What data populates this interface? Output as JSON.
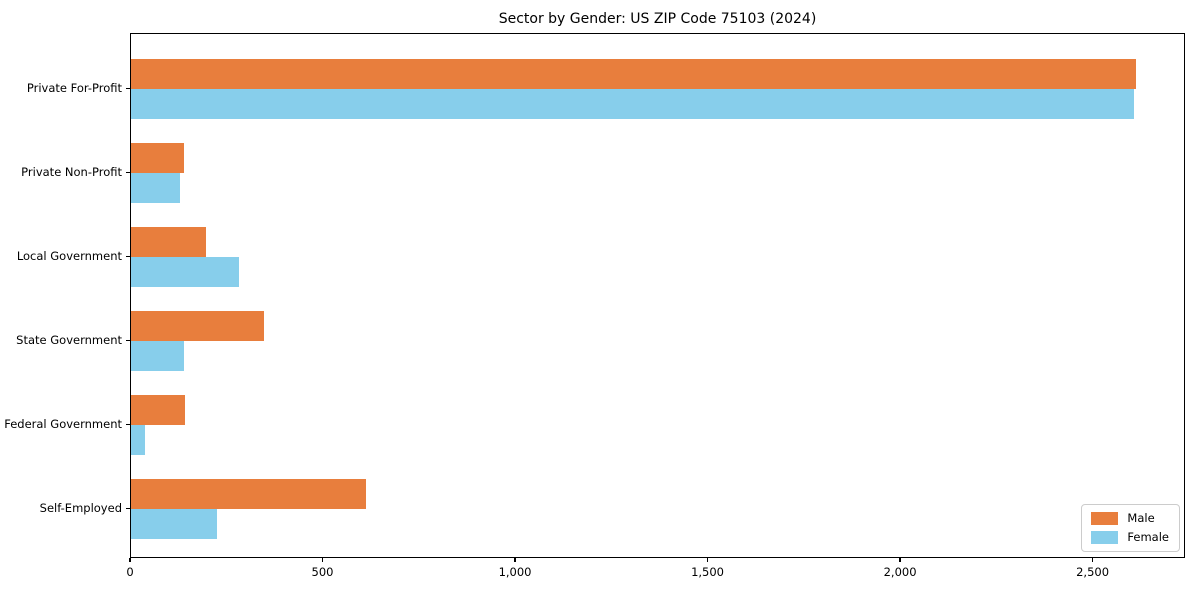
{
  "chart_data": {
    "type": "bar",
    "orientation": "horizontal",
    "title": "Sector by Gender: US ZIP Code 75103 (2024)",
    "categories": [
      "Private For-Profit",
      "Private Non-Profit",
      "Local Government",
      "State Government",
      "Federal Government",
      "Self-Employed"
    ],
    "series": [
      {
        "name": "Male",
        "color": "#e87e3d",
        "values": [
          2610,
          138,
          195,
          345,
          140,
          610
        ]
      },
      {
        "name": "Female",
        "color": "#87ceeb",
        "values": [
          2605,
          127,
          280,
          138,
          36,
          223
        ]
      }
    ],
    "xlabel": "",
    "ylabel": "",
    "xlim": [
      0,
      2740
    ],
    "xticks": [
      0,
      500,
      1000,
      1500,
      2000,
      2500
    ],
    "xtick_labels": [
      "0",
      "500",
      "1,000",
      "1,500",
      "2,000",
      "2,500"
    ],
    "legend_position": "lower right",
    "grid": false,
    "background_color": "#ffffff",
    "axis_color": "#000000"
  }
}
